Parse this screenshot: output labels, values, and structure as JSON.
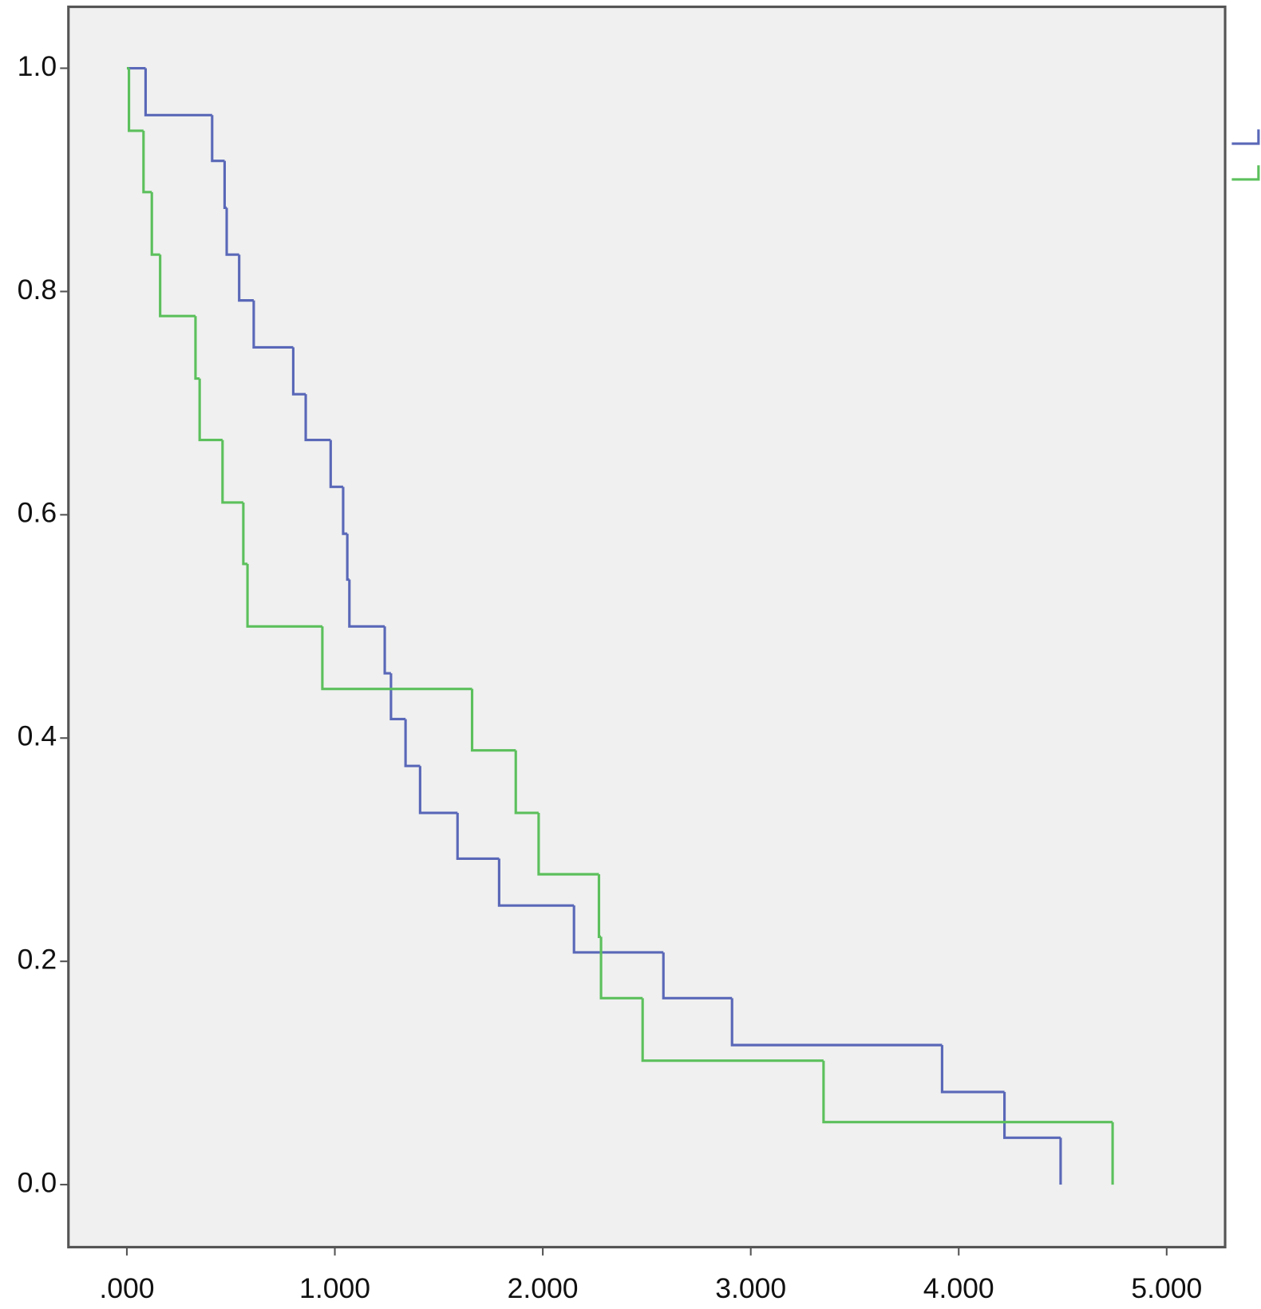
{
  "chart_data": {
    "type": "step",
    "xlim": [
      -0.281,
      5.281
    ],
    "ylim": [
      -0.056,
      1.055
    ],
    "xticks": [
      {
        "value": 0,
        "label": ".000"
      },
      {
        "value": 1,
        "label": "1.000"
      },
      {
        "value": 2,
        "label": "2.000"
      },
      {
        "value": 3,
        "label": "3.000"
      },
      {
        "value": 4,
        "label": "4.000"
      },
      {
        "value": 5,
        "label": "5.000"
      }
    ],
    "yticks": [
      {
        "value": 0,
        "label": "0.0"
      },
      0.2,
      0.4,
      0.6,
      0.8,
      {
        "value": 1,
        "label": "1.0"
      }
    ],
    "series": [
      {
        "color": "#5a68b8",
        "x": [
          0,
          0.09,
          0.41,
          0.47,
          0.48,
          0.54,
          0.61,
          0.8,
          0.86,
          0.98,
          1.04,
          1.06,
          1.07,
          1.24,
          1.27,
          1.34,
          1.41,
          1.59,
          1.79,
          2.15,
          2.58,
          2.91,
          3.92,
          4.22,
          4.49
        ],
        "values": [
          1,
          0.958,
          0.917,
          0.875,
          0.833,
          0.792,
          0.75,
          0.708,
          0.667,
          0.625,
          0.583,
          0.542,
          0.5,
          0.458,
          0.417,
          0.375,
          0.333,
          0.292,
          0.25,
          0.208,
          0.167,
          0.125,
          0.083,
          0.042,
          0
        ]
      },
      {
        "color": "#5cc05c",
        "x": [
          0,
          0.01,
          0.08,
          0.12,
          0.16,
          0.33,
          0.35,
          0.46,
          0.56,
          0.58,
          0.94,
          1.66,
          1.87,
          1.98,
          2.27,
          2.28,
          2.48,
          3.35,
          4.74
        ],
        "values": [
          1,
          0.944,
          0.889,
          0.833,
          0.778,
          0.722,
          0.667,
          0.611,
          0.556,
          0.5,
          0.444,
          0.389,
          0.333,
          0.278,
          0.222,
          0.167,
          0.111,
          0.056,
          0
        ]
      }
    ]
  }
}
